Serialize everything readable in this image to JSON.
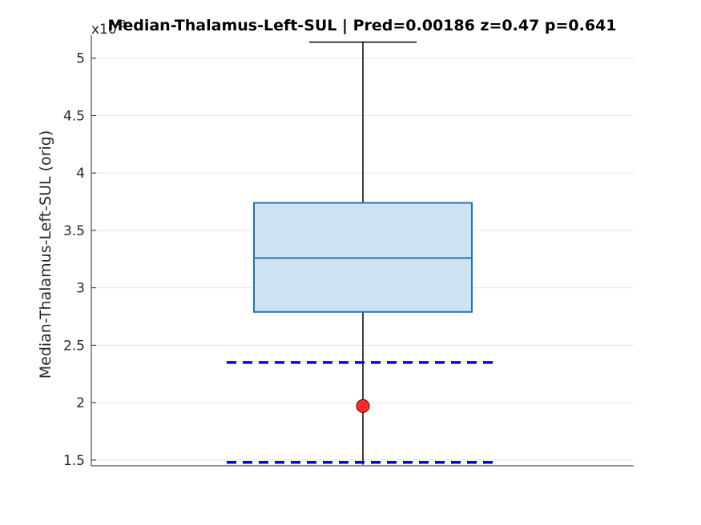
{
  "chart_data": {
    "type": "box",
    "title": "Median-Thalamus-Left-SUL  |  Pred=0.00186  z=0.47  p=0.641",
    "ylabel": "Median-Thalamus-Left-SUL (orig)",
    "exponent_label": "x10",
    "exponent_power": "-3",
    "ylim": [
      1.45,
      5.2
    ],
    "yticks": [
      1.5,
      2,
      2.5,
      3,
      3.5,
      4,
      4.5,
      5
    ],
    "ytick_labels": [
      "1.5",
      "2",
      "2.5",
      "3",
      "3.5",
      "4",
      "4.5",
      "5"
    ],
    "grid": true,
    "box": {
      "whisker_low": 1.46,
      "q1": 2.79,
      "median": 3.26,
      "q3": 3.74,
      "whisker_high": 5.14
    },
    "reference_lines": [
      {
        "value": 2.35,
        "style": "dashed",
        "color": "#0000ee"
      },
      {
        "value": 1.48,
        "style": "dashed",
        "color": "#0000ee"
      }
    ],
    "point": {
      "value": 1.97,
      "color": "#ff2a2a"
    },
    "colors": {
      "box_fill": "#cde3f2",
      "box_edge": "#1f77b4",
      "whisker": "#000000",
      "grid": "#e3e3e3"
    }
  }
}
